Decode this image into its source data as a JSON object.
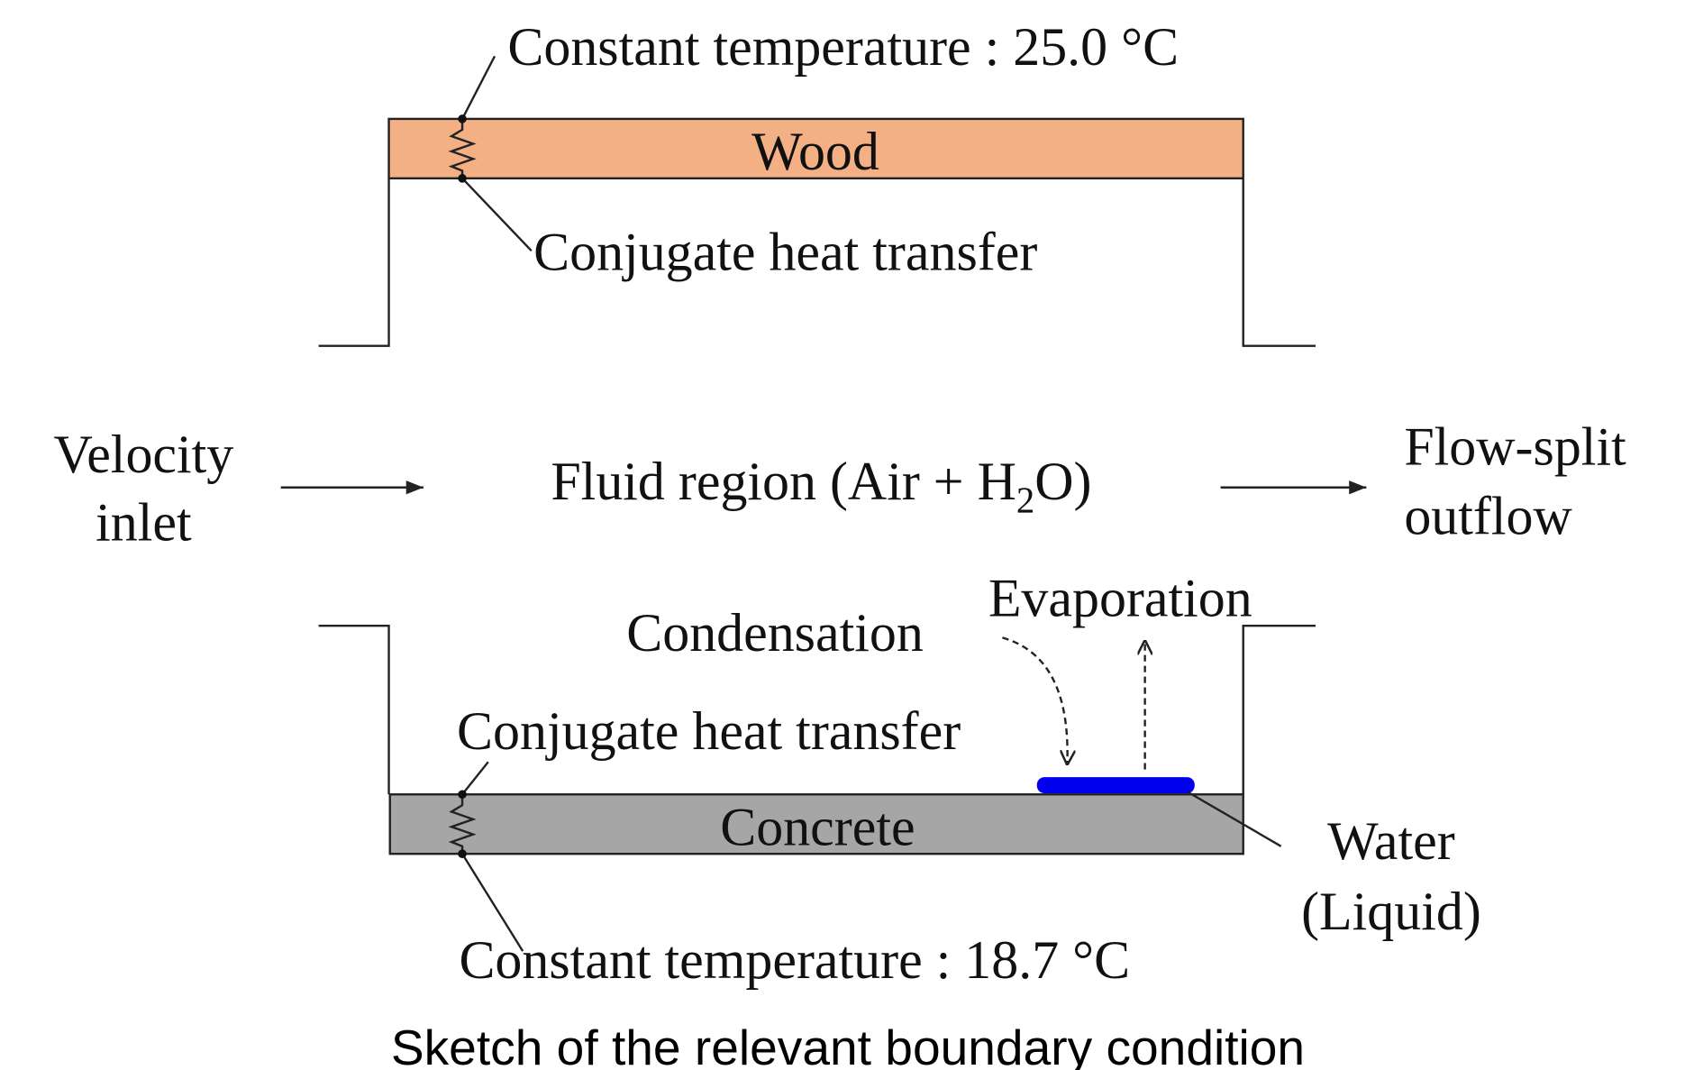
{
  "top": {
    "boundary": "Constant temperature : 25.0 °C",
    "material": "Wood",
    "interface": "Conjugate heat transfer"
  },
  "inlet": {
    "lines": [
      "Velocity",
      "inlet"
    ]
  },
  "fluid": {
    "text": "Fluid region (Air + H",
    "subscript": "2",
    "tail": "O)"
  },
  "outlet": {
    "lines": [
      "Flow-split",
      "outflow"
    ]
  },
  "bottom": {
    "condensation": "Condensation",
    "evaporation": "Evaporation",
    "interface": "Conjugate heat transfer",
    "material": "Concrete",
    "boundary": "Constant temperature : 18.7 °C",
    "water": [
      "Water",
      "(Liquid)"
    ]
  },
  "caption": "Sketch of the relevant boundary condition"
}
